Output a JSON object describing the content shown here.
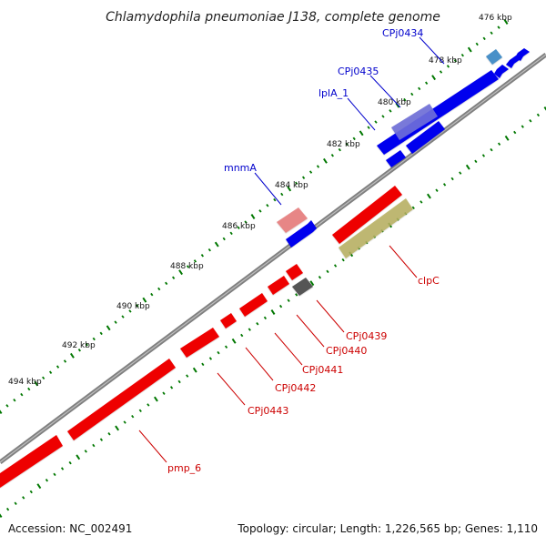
{
  "title": "Chlamydophila pneumoniae J138, complete genome",
  "footer": {
    "accession": "Accession: NC_002491",
    "topology": "Topology: circular; Length: 1,226,565 bp; Genes: 1,110"
  },
  "colors": {
    "backbone": "#808080",
    "forward": "#0000ee",
    "reverse": "#ee0000",
    "tick": "#007700",
    "forward_label": "#0000cc",
    "reverse_label": "#cc0000"
  },
  "scale_labels": [
    "476 kbp",
    "478 kbp",
    "480 kbp",
    "482 kbp",
    "484 kbp",
    "486 kbp",
    "488 kbp",
    "490 kbp",
    "492 kbp",
    "494 kbp"
  ],
  "forward_gene_labels": [
    "CPj0434",
    "CPj0435",
    "lplA_1",
    "mnmA"
  ],
  "reverse_gene_labels": [
    "clpC",
    "CPj0439",
    "CPj0440",
    "CPj0441",
    "CPj0442",
    "CPj0443",
    "pmp_6"
  ]
}
